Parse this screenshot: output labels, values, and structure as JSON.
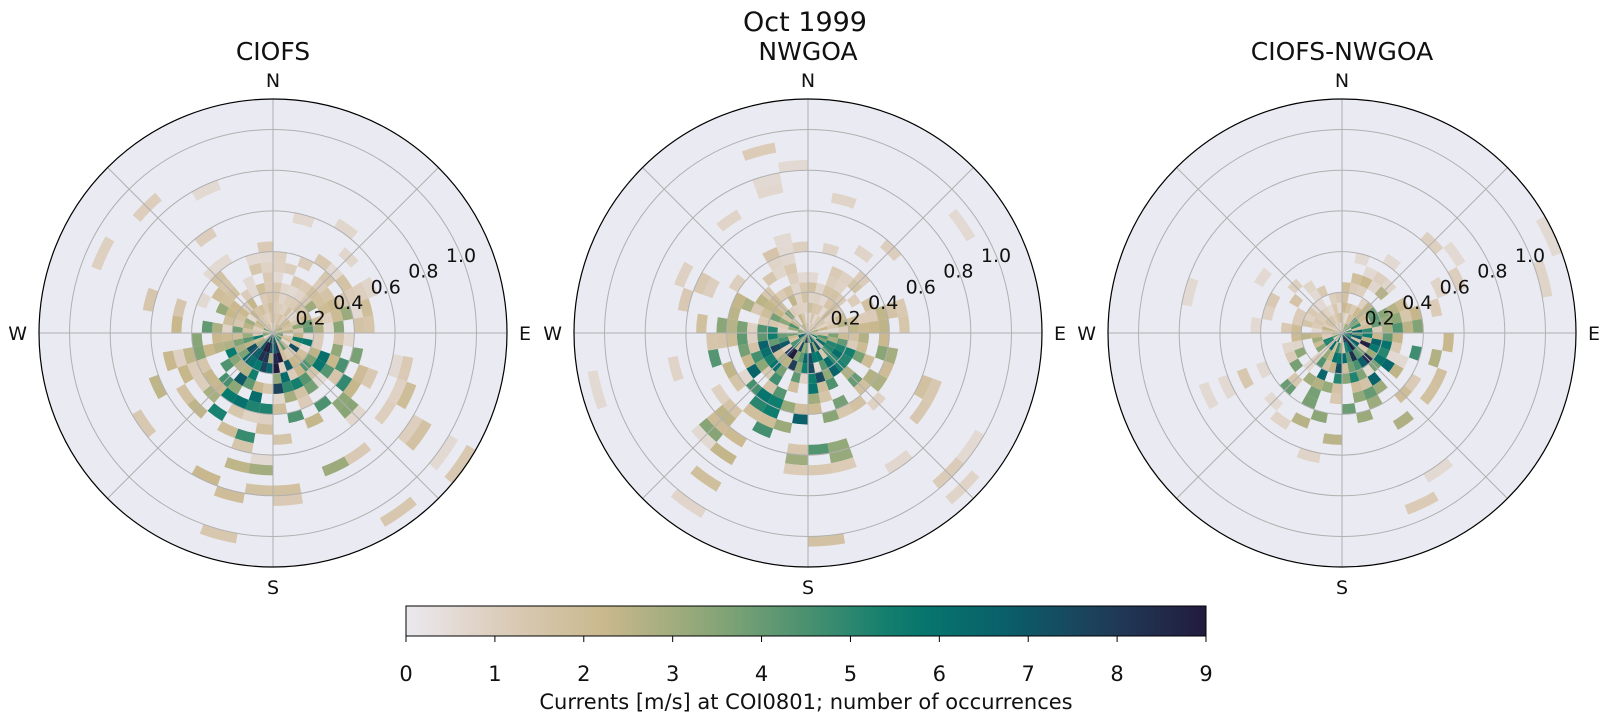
{
  "figure": {
    "suptitle": "Oct 1999"
  },
  "chart_data": [
    {
      "type": "polar-histogram",
      "title": "CIOFS",
      "direction_labels": [
        "N",
        "E",
        "S",
        "W"
      ],
      "radial_ticks": [
        0.2,
        0.4,
        0.6,
        0.8,
        1.0
      ],
      "radial_tick_labels": [
        "0.2",
        "0.4",
        "0.6",
        "0.8",
        "1.0"
      ],
      "rlim": [
        0,
        1.15
      ],
      "sectors": 36,
      "bin_width": 0.05,
      "spread": 1.0,
      "peak_direction_deg": 180,
      "seed": 11,
      "grid": true
    },
    {
      "type": "polar-histogram",
      "title": "NWGOA",
      "direction_labels": [
        "N",
        "E",
        "S",
        "W"
      ],
      "radial_ticks": [
        0.2,
        0.4,
        0.6,
        0.8,
        1.0
      ],
      "radial_tick_labels": [
        "0.2",
        "0.4",
        "0.6",
        "0.8",
        "1.0"
      ],
      "rlim": [
        0,
        1.15
      ],
      "sectors": 36,
      "bin_width": 0.05,
      "spread": 0.95,
      "peak_direction_deg": 195,
      "seed": 23,
      "grid": true
    },
    {
      "type": "polar-histogram",
      "title": "CIOFS-NWGOA",
      "direction_labels": [
        "N",
        "E",
        "S",
        "W"
      ],
      "radial_ticks": [
        0.2,
        0.4,
        0.6,
        0.8,
        1.0
      ],
      "radial_tick_labels": [
        "0.2",
        "0.4",
        "0.6",
        "0.8",
        "1.0"
      ],
      "rlim": [
        0,
        1.15
      ],
      "sectors": 36,
      "bin_width": 0.05,
      "spread": 0.75,
      "peak_direction_deg": 150,
      "seed": 37,
      "grid": true
    }
  ],
  "colorbar": {
    "min": 0,
    "max": 9,
    "ticks": [
      "0",
      "1",
      "2",
      "3",
      "4",
      "5",
      "6",
      "7",
      "8",
      "9"
    ],
    "label": "Currents [m/s] at COI0801; number of occurrences",
    "colors": [
      "#ebe9ef",
      "#dbcbb8",
      "#c9b88d",
      "#8ea777",
      "#4a9170",
      "#067a6e",
      "#0a5f69",
      "#1f3d59",
      "#221b3e"
    ]
  },
  "colors": {
    "axes_bg": "#eaeaf2",
    "grid": "#b0b0b0",
    "spine": "#000000"
  }
}
